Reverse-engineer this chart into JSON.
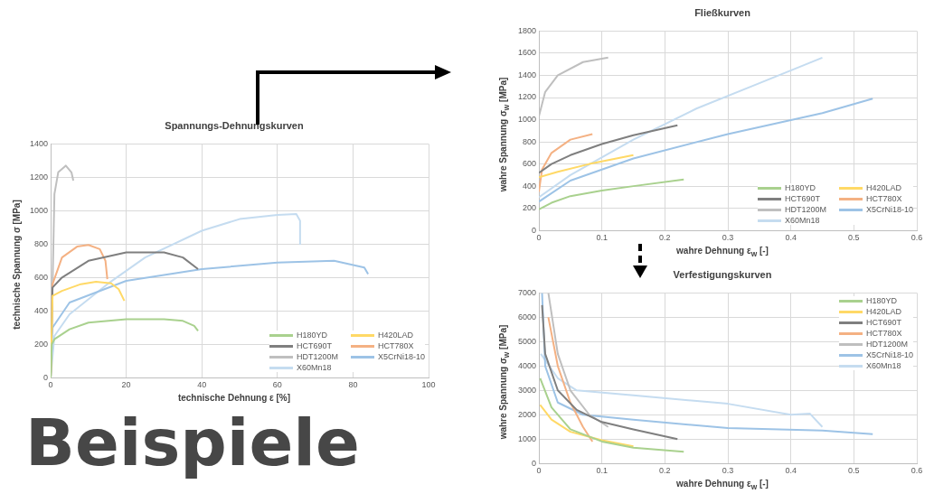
{
  "chart_data": [
    {
      "type": "line",
      "title": "Spannungs-Dehnungskurven",
      "xlabel": "technische Dehnung ε [%]",
      "ylabel": "technische Spannung σ [MPa]",
      "xlim": [
        0,
        100
      ],
      "xticks": [
        0,
        20,
        40,
        60,
        80,
        100
      ],
      "ylim": [
        0,
        1400
      ],
      "yticks": [
        0,
        200,
        400,
        600,
        800,
        1000,
        1200,
        1400
      ],
      "grid": true,
      "legend": "bottom right",
      "marker": "none",
      "series": [
        {
          "name": "H180YD",
          "color": "#a9d18e",
          "x": [
            0,
            0.3,
            1,
            5,
            10,
            20,
            30,
            35,
            38,
            39
          ],
          "values": [
            0,
            200,
            230,
            290,
            330,
            350,
            350,
            340,
            310,
            280
          ]
        },
        {
          "name": "H420LAD",
          "color": "#ffd966",
          "x": [
            0,
            0.5,
            3,
            8,
            12,
            16,
            18,
            19.5
          ],
          "values": [
            0,
            490,
            520,
            560,
            575,
            565,
            530,
            460
          ]
        },
        {
          "name": "HCT690T",
          "color": "#7f7f7f",
          "x": [
            0,
            0.5,
            3,
            10,
            20,
            30,
            35,
            39
          ],
          "values": [
            0,
            540,
            600,
            700,
            750,
            750,
            720,
            650
          ]
        },
        {
          "name": "HCT780X",
          "color": "#f4b183",
          "x": [
            0,
            0.5,
            3,
            7,
            10,
            13,
            14.5,
            15
          ],
          "values": [
            0,
            560,
            720,
            785,
            795,
            770,
            700,
            590
          ]
        },
        {
          "name": "HDT1200M",
          "color": "#bfbfbf",
          "x": [
            0,
            1,
            2,
            4,
            5.5,
            6
          ],
          "values": [
            0,
            1100,
            1230,
            1270,
            1230,
            1180
          ]
        },
        {
          "name": "X5CrNi18-10",
          "color": "#9dc3e6",
          "x": [
            0,
            0.5,
            5,
            20,
            40,
            60,
            75,
            83,
            84
          ],
          "values": [
            0,
            300,
            450,
            580,
            650,
            690,
            700,
            660,
            620
          ]
        },
        {
          "name": "X60Mn18",
          "color": "#c5dcf0",
          "x": [
            0,
            1,
            5,
            15,
            25,
            40,
            50,
            60,
            65,
            66,
            66
          ],
          "values": [
            0,
            250,
            380,
            560,
            720,
            880,
            950,
            975,
            980,
            940,
            800
          ]
        }
      ]
    },
    {
      "type": "line",
      "title": "Fließkurven",
      "xlabel": "wahre Dehnung ε$_{w}$ [-]",
      "ylabel": "wahre Spannung σ$_{w}$ [MPa]",
      "xlim": [
        0,
        0.6
      ],
      "xticks": [
        0,
        0.1,
        0.2,
        0.3,
        0.4,
        0.5,
        0.6
      ],
      "ylim": [
        0,
        1800
      ],
      "yticks": [
        0,
        200,
        400,
        600,
        800,
        1000,
        1200,
        1400,
        1600,
        1800
      ],
      "grid": true,
      "legend": "bottom right",
      "marker": "none",
      "series": [
        {
          "name": "H180YD",
          "color": "#a9d18e",
          "x": [
            0,
            0.02,
            0.05,
            0.1,
            0.15,
            0.23
          ],
          "values": [
            190,
            250,
            310,
            360,
            400,
            460
          ]
        },
        {
          "name": "H420LAD",
          "color": "#ffd966",
          "x": [
            0,
            0.03,
            0.08,
            0.15
          ],
          "values": [
            480,
            530,
            600,
            680
          ]
        },
        {
          "name": "HCT690T",
          "color": "#7f7f7f",
          "x": [
            0,
            0.02,
            0.05,
            0.1,
            0.15,
            0.22
          ],
          "values": [
            520,
            600,
            680,
            780,
            860,
            950
          ]
        },
        {
          "name": "HCT780X",
          "color": "#f4b183",
          "x": [
            0,
            0.005,
            0.02,
            0.05,
            0.085
          ],
          "values": [
            350,
            550,
            700,
            820,
            870
          ]
        },
        {
          "name": "HDT1200M",
          "color": "#bfbfbf",
          "x": [
            0,
            0.01,
            0.03,
            0.07,
            0.11
          ],
          "values": [
            1030,
            1250,
            1400,
            1520,
            1560
          ]
        },
        {
          "name": "X5CrNi18-10",
          "color": "#9dc3e6",
          "x": [
            0,
            0.05,
            0.15,
            0.3,
            0.45,
            0.53
          ],
          "values": [
            260,
            450,
            650,
            870,
            1060,
            1190
          ]
        },
        {
          "name": "X60Mn18",
          "color": "#c5dcf0",
          "x": [
            0,
            0.05,
            0.15,
            0.25,
            0.35,
            0.45
          ],
          "values": [
            300,
            500,
            820,
            1100,
            1330,
            1560
          ]
        }
      ]
    },
    {
      "type": "line",
      "title": "Verfestigungskurven",
      "xlabel": "wahre Dehnung ε$_{w}$ [-]",
      "ylabel": "wahre Spannung σ$_{w}$ [MPa]",
      "xlim": [
        0,
        0.6
      ],
      "xticks": [
        0,
        0.1,
        0.2,
        0.3,
        0.4,
        0.5,
        0.6
      ],
      "ylim": [
        0,
        7000
      ],
      "yticks": [
        0,
        1000,
        2000,
        3000,
        4000,
        5000,
        6000,
        7000
      ],
      "grid": true,
      "legend": "top right",
      "marker": "none",
      "series": [
        {
          "name": "H180YD",
          "color": "#a9d18e",
          "x": [
            0.002,
            0.02,
            0.05,
            0.1,
            0.15,
            0.23
          ],
          "values": [
            3500,
            2300,
            1400,
            900,
            650,
            480
          ]
        },
        {
          "name": "H420LAD",
          "color": "#ffd966",
          "x": [
            0.002,
            0.02,
            0.05,
            0.1,
            0.15
          ],
          "values": [
            2400,
            1800,
            1300,
            950,
            700
          ]
        },
        {
          "name": "HCT690T",
          "color": "#7f7f7f",
          "x": [
            0.005,
            0.01,
            0.03,
            0.06,
            0.1,
            0.15,
            0.22
          ],
          "values": [
            6500,
            4500,
            3000,
            2200,
            1700,
            1400,
            1000
          ]
        },
        {
          "name": "HCT780X",
          "color": "#f4b183",
          "x": [
            0.015,
            0.03,
            0.05,
            0.07,
            0.085
          ],
          "values": [
            6000,
            4000,
            2500,
            1500,
            900
          ]
        },
        {
          "name": "HDT1200M",
          "color": "#bfbfbf",
          "x": [
            0.015,
            0.03,
            0.05,
            0.08,
            0.11
          ],
          "values": [
            7000,
            4500,
            3000,
            2000,
            1500
          ]
        },
        {
          "name": "X5CrNi18-10",
          "color": "#9dc3e6",
          "x": [
            0.005,
            0.01,
            0.03,
            0.07,
            0.15,
            0.3,
            0.45,
            0.53
          ],
          "values": [
            7000,
            4000,
            2500,
            2000,
            1800,
            1450,
            1350,
            1200
          ]
        },
        {
          "name": "X60Mn18",
          "color": "#c5dcf0",
          "x": [
            0.003,
            0.03,
            0.06,
            0.15,
            0.3,
            0.4,
            0.43,
            0.45
          ],
          "values": [
            4500,
            3500,
            3000,
            2800,
            2450,
            2000,
            2050,
            1500
          ]
        }
      ]
    },
    {
      "type": "other",
      "title": "Beispiele"
    }
  ]
}
